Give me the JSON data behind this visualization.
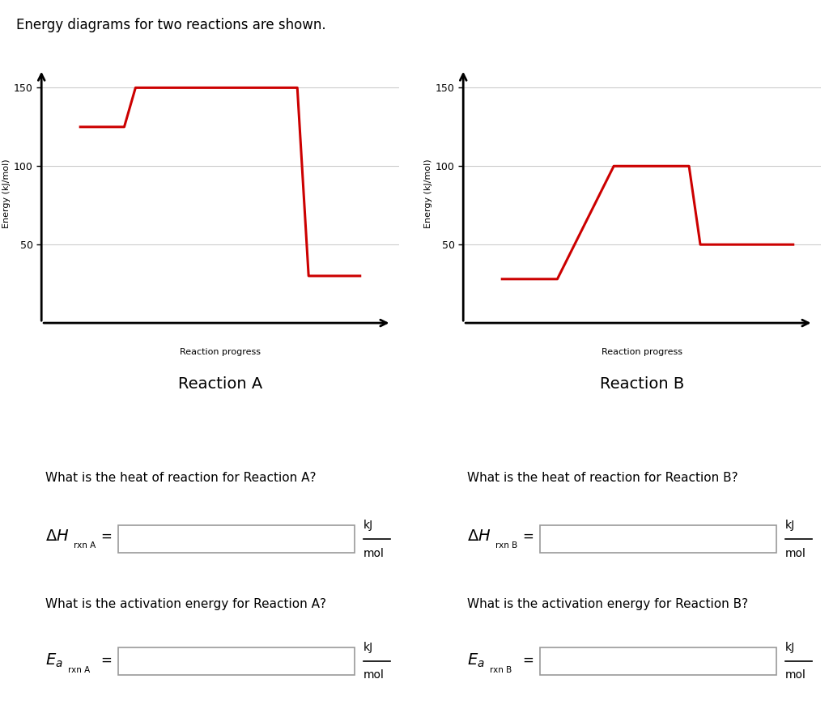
{
  "title": "Energy diagrams for two reactions are shown.",
  "title_fontsize": 12,
  "background_color": "#ffffff",
  "reaction_a": {
    "label": "Reaction A",
    "xlabel": "Reaction progress",
    "ylabel": "Energy (kJ/mol)",
    "yticks": [
      50,
      100,
      150
    ],
    "ylim": [
      0,
      165
    ],
    "line_color": "#cc0000",
    "line_width": 2.2,
    "x": [
      1.0,
      2.2,
      2.5,
      3.5,
      3.8,
      5.0,
      5.3,
      6.8,
      7.1,
      8.5
    ],
    "y": [
      125,
      125,
      150,
      150,
      150,
      150,
      150,
      150,
      30,
      30
    ]
  },
  "reaction_b": {
    "label": "Reaction B",
    "xlabel": "Reaction progress",
    "ylabel": "Energy (kJ/mol)",
    "yticks": [
      50,
      100,
      150
    ],
    "ylim": [
      0,
      165
    ],
    "line_color": "#cc0000",
    "line_width": 2.2,
    "x": [
      1.0,
      2.2,
      2.5,
      4.0,
      4.3,
      6.0,
      6.3,
      7.5,
      7.8,
      8.8
    ],
    "y": [
      28,
      28,
      28,
      100,
      100,
      100,
      50,
      50,
      50,
      50
    ]
  },
  "question_a_heat": "What is the heat of reaction for Reaction A?",
  "question_a_ea": "What is the activation energy for Reaction A?",
  "question_b_heat": "What is the heat of reaction for Reaction B?",
  "question_b_ea": "What is the activation energy for Reaction B?",
  "reaction_progress_fontsize": 8,
  "reaction_label_fontsize": 14,
  "question_fontsize": 11,
  "axis_label_fontsize": 8,
  "tick_fontsize": 9,
  "text_color_heat": "#0000cc",
  "text_color_ea": "#cc6600",
  "box_edge_color": "#999999",
  "grid_color": "#cccccc"
}
